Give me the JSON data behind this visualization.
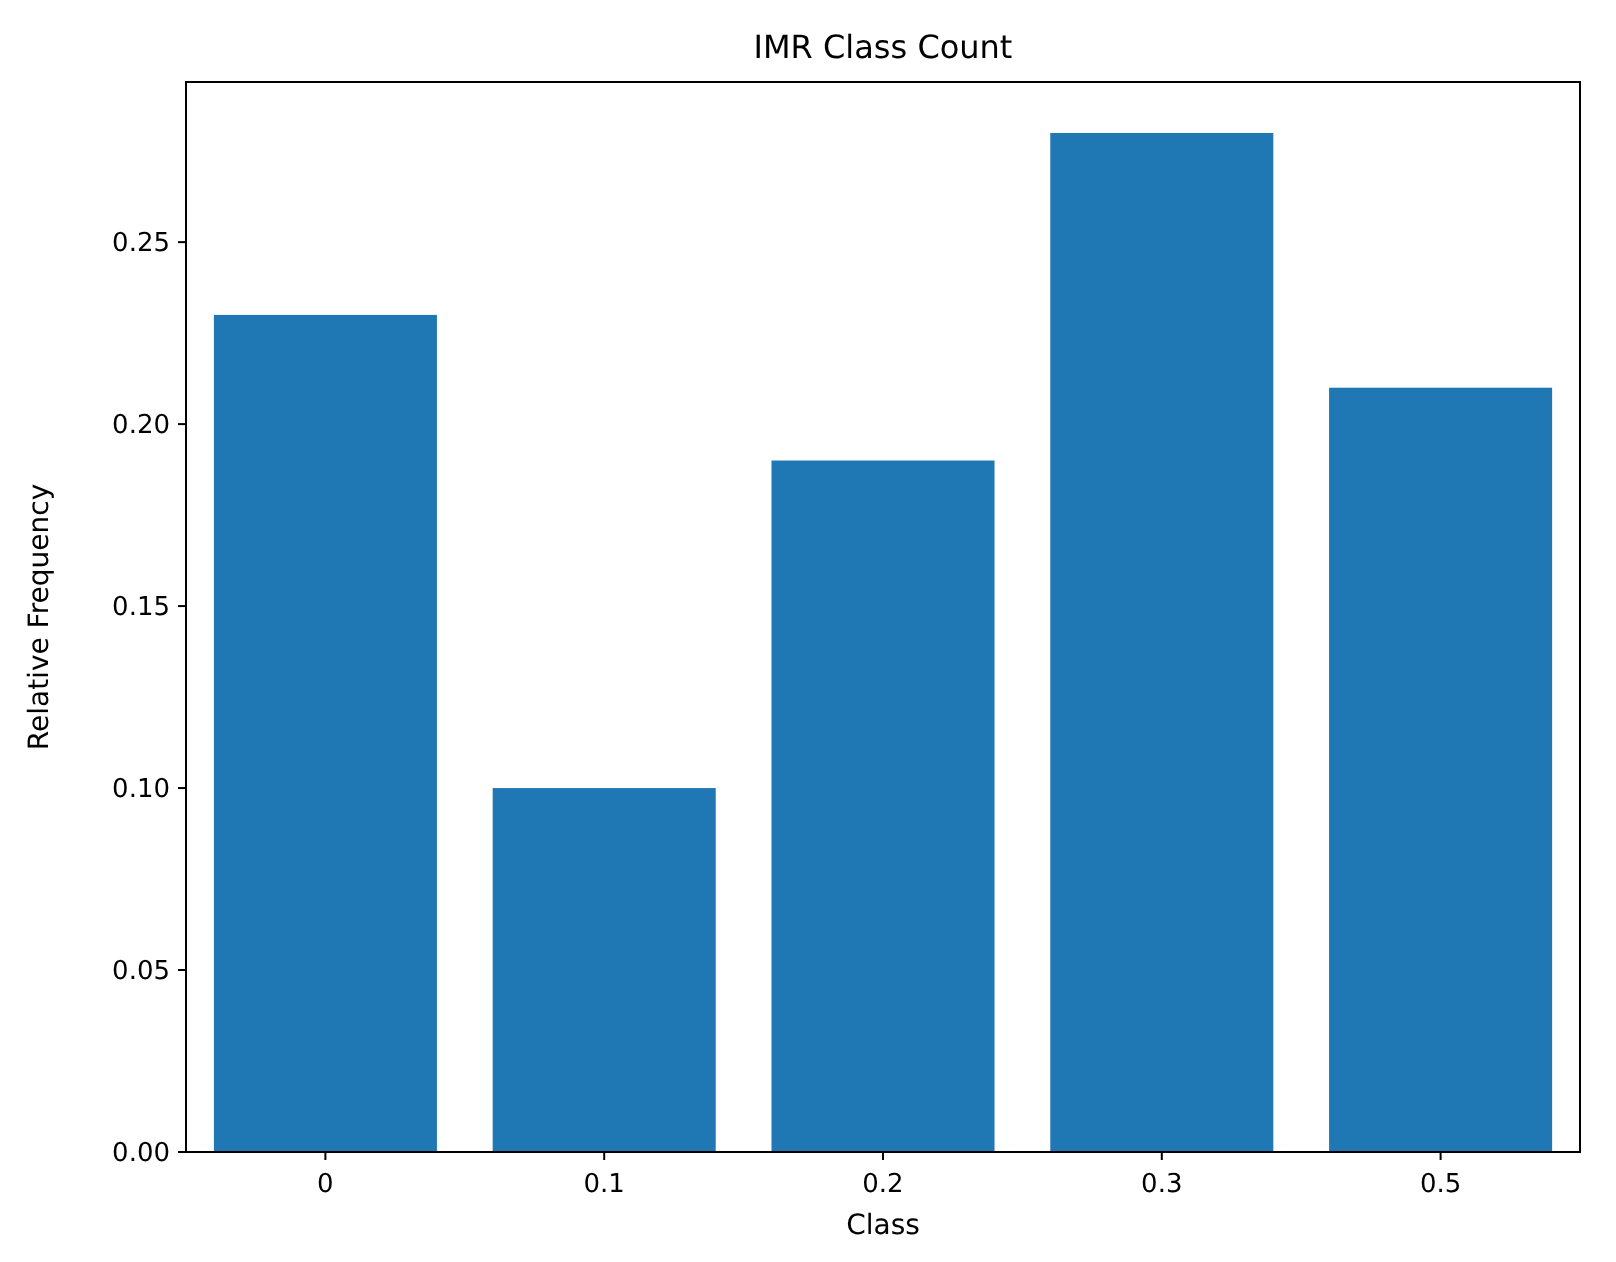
{
  "chart_data": {
    "type": "bar",
    "title": "IMR Class Count",
    "xlabel": "Class",
    "ylabel": "Relative Frequency",
    "categories": [
      "0",
      "0.1",
      "0.2",
      "0.3",
      "0.5"
    ],
    "values": [
      0.23,
      0.1,
      0.19,
      0.28,
      0.21
    ],
    "color": "#1f77b4",
    "ylim": [
      0,
      0.294
    ],
    "yticks": [
      {
        "value": 0,
        "label": "0.00"
      },
      {
        "value": 0.05,
        "label": "0.05"
      },
      {
        "value": 0.1,
        "label": "0.10"
      },
      {
        "value": 0.15,
        "label": "0.15"
      },
      {
        "value": 0.2,
        "label": "0.20"
      },
      {
        "value": 0.25,
        "label": "0.25"
      }
    ],
    "grid": false
  }
}
